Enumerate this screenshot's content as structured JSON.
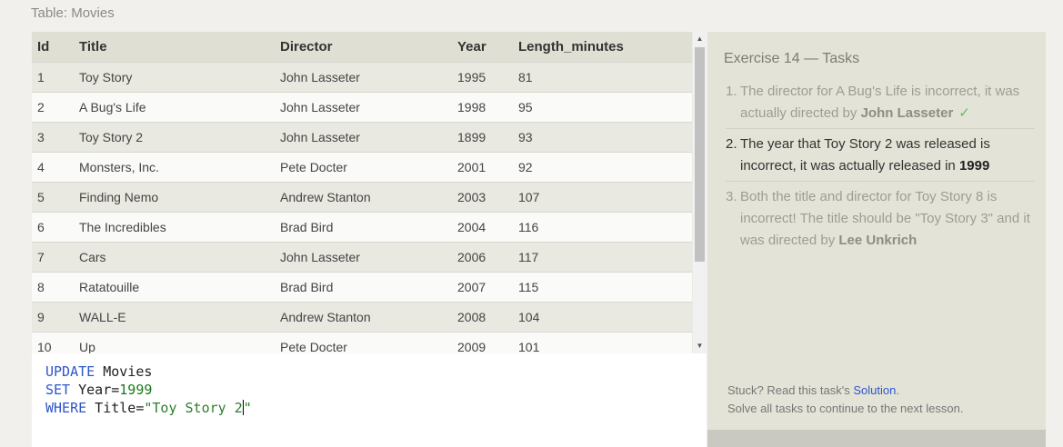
{
  "table_caption": "Table: Movies",
  "table": {
    "columns": [
      "Id",
      "Title",
      "Director",
      "Year",
      "Length_minutes"
    ],
    "rows": [
      [
        "1",
        "Toy Story",
        "John Lasseter",
        "1995",
        "81"
      ],
      [
        "2",
        "A Bug's Life",
        "John Lasseter",
        "1998",
        "95"
      ],
      [
        "3",
        "Toy Story 2",
        "John Lasseter",
        "1899",
        "93"
      ],
      [
        "4",
        "Monsters, Inc.",
        "Pete Docter",
        "2001",
        "92"
      ],
      [
        "5",
        "Finding Nemo",
        "Andrew Stanton",
        "2003",
        "107"
      ],
      [
        "6",
        "The Incredibles",
        "Brad Bird",
        "2004",
        "116"
      ],
      [
        "7",
        "Cars",
        "John Lasseter",
        "2006",
        "117"
      ],
      [
        "8",
        "Ratatouille",
        "Brad Bird",
        "2007",
        "115"
      ],
      [
        "9",
        "WALL-E",
        "Andrew Stanton",
        "2008",
        "104"
      ],
      [
        "10",
        "Up",
        "Pete Docter",
        "2009",
        "101"
      ]
    ]
  },
  "scrollbar": {
    "up_glyph": "▲",
    "down_glyph": "▼"
  },
  "editor": {
    "line1_kw": "UPDATE",
    "line1_rest": " Movies",
    "line2_kw": "SET",
    "line2_ident": " Year=",
    "line2_num": "1999",
    "line3_kw": "WHERE",
    "line3_ident": " Title=",
    "line3_str": "\"Toy Story 2",
    "line3_after_caret": "\""
  },
  "tasks": {
    "title": "Exercise 14 — Tasks",
    "items": [
      {
        "num": "1.",
        "text_before": "The director for A Bug's Life is incorrect, it was actually directed by ",
        "bold": "John Lasseter",
        "text_after": "",
        "check": "✓"
      },
      {
        "num": "2.",
        "text_before": "The year that Toy Story 2 was released is incorrect, it was actually released in ",
        "bold": "1999",
        "text_after": ""
      },
      {
        "num": "3.",
        "text_before": "Both the title and director for Toy Story 8 is incorrect! The title should be \"Toy Story 3\" and it was directed by ",
        "bold": "Lee Unkrich",
        "text_after": ""
      }
    ]
  },
  "help": {
    "stuck_prefix": "Stuck? Read this task's ",
    "solution_link": "Solution",
    "stuck_suffix": ".",
    "line2": "Solve all tasks to continue to the next lesson."
  },
  "colors": {
    "keyword": "#2f56c9",
    "string": "#2f7d2f",
    "check": "#5cbf5c"
  }
}
